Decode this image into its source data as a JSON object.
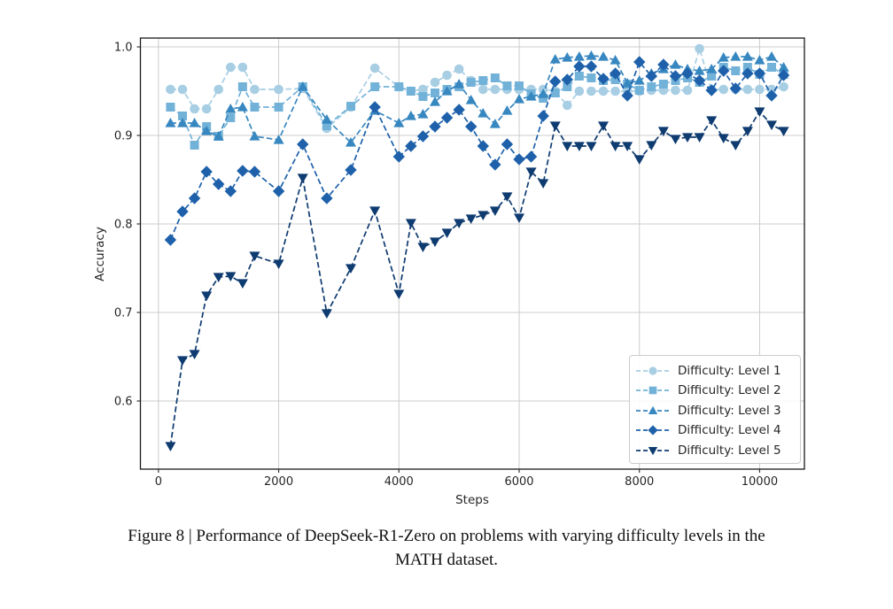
{
  "caption": {
    "line1": "Figure 8 | Performance of DeepSeek-R1-Zero on problems with varying difficulty levels in the",
    "line2": "MATH dataset."
  },
  "chart_data": {
    "type": "line",
    "title": "",
    "xlabel": "Steps",
    "ylabel": "Accuracy",
    "grid": true,
    "line_style": "dashed",
    "legend_position": "lower right",
    "x_ticks": [
      0,
      2000,
      4000,
      6000,
      8000,
      10000
    ],
    "y_ticks": [
      0.6,
      0.7,
      0.8,
      0.9,
      1.0
    ],
    "xlim": [
      -300,
      10745
    ],
    "ylim": [
      0.523,
      1.01
    ],
    "x": [
      200,
      400,
      600,
      800,
      1000,
      1200,
      1400,
      1600,
      2000,
      2400,
      2800,
      3200,
      3600,
      4000,
      4200,
      4400,
      4600,
      4800,
      5000,
      5200,
      5400,
      5600,
      5800,
      6000,
      6200,
      6400,
      6600,
      6800,
      7000,
      7200,
      7400,
      7600,
      7800,
      8000,
      8200,
      8400,
      8600,
      8800,
      9000,
      9200,
      9400,
      9600,
      9800,
      10000,
      10200,
      10400
    ],
    "series": [
      {
        "name": "Difficulty: Level 1",
        "marker": "circle",
        "color": "#a8cee4",
        "values": [
          0.952,
          0.952,
          0.93,
          0.93,
          0.952,
          0.977,
          0.977,
          0.952,
          0.952,
          0.953,
          0.908,
          0.932,
          0.976,
          0.955,
          0.95,
          0.952,
          0.96,
          0.968,
          0.975,
          0.962,
          0.952,
          0.952,
          0.952,
          0.952,
          0.952,
          0.952,
          0.95,
          0.934,
          0.95,
          0.95,
          0.95,
          0.95,
          0.95,
          0.95,
          0.951,
          0.951,
          0.951,
          0.951,
          0.998,
          0.952,
          0.952,
          0.952,
          0.952,
          0.952,
          0.952,
          0.955
        ]
      },
      {
        "name": "Difficulty: Level 2",
        "marker": "square",
        "color": "#73b2d8",
        "values": [
          0.932,
          0.922,
          0.889,
          0.91,
          0.899,
          0.92,
          0.955,
          0.932,
          0.932,
          0.955,
          0.911,
          0.933,
          0.955,
          0.955,
          0.95,
          0.944,
          0.948,
          0.952,
          0.955,
          0.96,
          0.962,
          0.965,
          0.956,
          0.956,
          0.947,
          0.942,
          0.948,
          0.955,
          0.967,
          0.965,
          0.962,
          0.963,
          0.958,
          0.951,
          0.955,
          0.958,
          0.962,
          0.965,
          0.96,
          0.967,
          0.977,
          0.973,
          0.977,
          0.969,
          0.977,
          0.969
        ]
      },
      {
        "name": "Difficulty: Level 3",
        "marker": "triangle",
        "color": "#3787c0",
        "values": [
          0.914,
          0.914,
          0.914,
          0.905,
          0.899,
          0.93,
          0.932,
          0.899,
          0.895,
          0.955,
          0.918,
          0.892,
          0.928,
          0.914,
          0.922,
          0.924,
          0.938,
          0.95,
          0.958,
          0.94,
          0.925,
          0.913,
          0.928,
          0.941,
          0.944,
          0.947,
          0.986,
          0.988,
          0.989,
          0.99,
          0.989,
          0.985,
          0.959,
          0.962,
          0.97,
          0.975,
          0.98,
          0.975,
          0.973,
          0.975,
          0.988,
          0.989,
          0.989,
          0.985,
          0.989,
          0.977
        ]
      },
      {
        "name": "Difficulty: Level 4",
        "marker": "diamond",
        "color": "#1e61aa",
        "values": [
          0.782,
          0.814,
          0.829,
          0.859,
          0.845,
          0.837,
          0.86,
          0.859,
          0.837,
          0.89,
          0.829,
          0.861,
          0.932,
          0.876,
          0.888,
          0.899,
          0.91,
          0.92,
          0.929,
          0.91,
          0.888,
          0.867,
          0.89,
          0.873,
          0.876,
          0.922,
          0.961,
          0.963,
          0.978,
          0.978,
          0.964,
          0.97,
          0.945,
          0.983,
          0.967,
          0.98,
          0.967,
          0.97,
          0.962,
          0.951,
          0.973,
          0.953,
          0.97,
          0.97,
          0.945,
          0.968
        ]
      },
      {
        "name": "Difficulty: Level 5",
        "marker": "triangle_down",
        "color": "#0e3b70",
        "values": [
          0.549,
          0.646,
          0.653,
          0.719,
          0.74,
          0.741,
          0.733,
          0.764,
          0.755,
          0.852,
          0.699,
          0.75,
          0.815,
          0.721,
          0.801,
          0.774,
          0.78,
          0.79,
          0.801,
          0.806,
          0.81,
          0.815,
          0.831,
          0.807,
          0.859,
          0.846,
          0.911,
          0.888,
          0.888,
          0.888,
          0.911,
          0.888,
          0.888,
          0.873,
          0.889,
          0.905,
          0.896,
          0.898,
          0.898,
          0.917,
          0.897,
          0.889,
          0.905,
          0.927,
          0.912,
          0.905
        ]
      }
    ]
  }
}
